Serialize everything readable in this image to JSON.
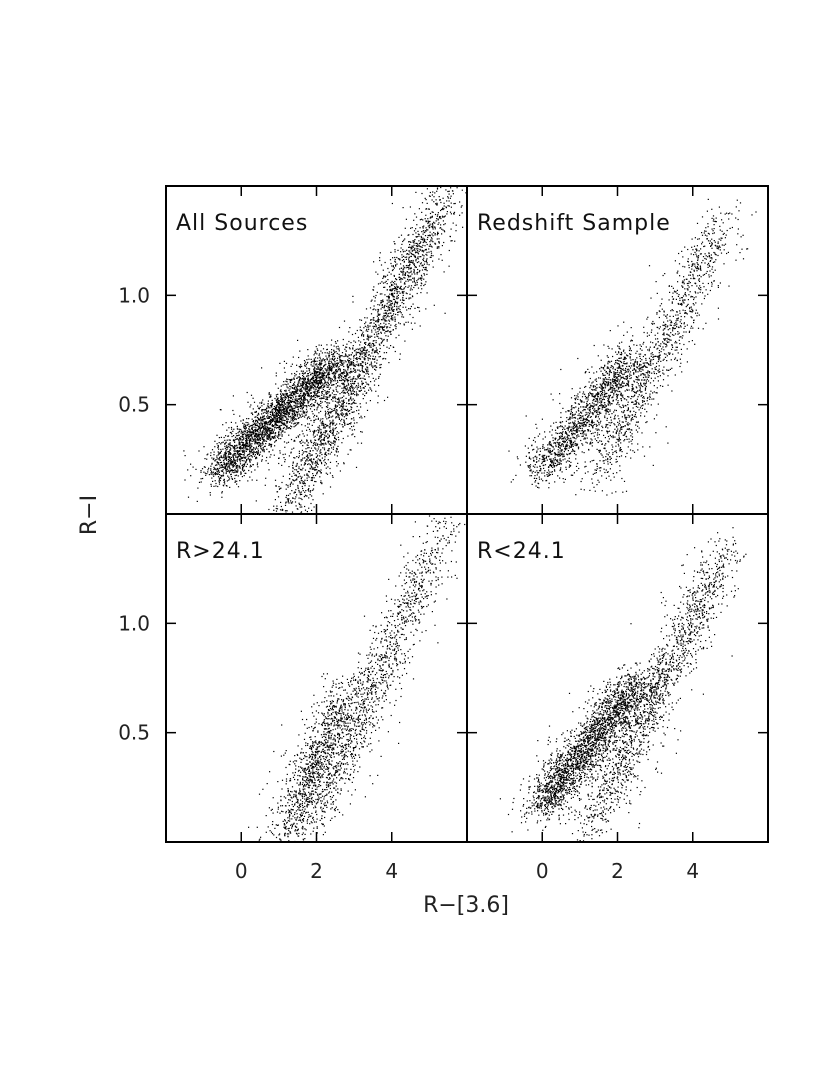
{
  "chart_data": {
    "type": "scatter",
    "xlabel": "R−[3.6]",
    "ylabel": "R−I",
    "xlim": [
      -2.0,
      6.0
    ],
    "ylim": [
      0.0,
      1.5
    ],
    "xticks": [
      {
        "value": 0,
        "label": "0"
      },
      {
        "value": 2,
        "label": "2"
      },
      {
        "value": 4,
        "label": "4"
      }
    ],
    "yticks": [
      {
        "value": 0.5,
        "label": "0.5"
      },
      {
        "value": 1.0,
        "label": "1.0"
      }
    ],
    "point_color": "#000000",
    "grid": false,
    "legend": "none",
    "panels": [
      {
        "title": "All Sources",
        "position": "top-left",
        "approx_points": 5200,
        "clusters": [
          {
            "x_range": [
              -0.7,
              2.6
            ],
            "y_range": [
              0.18,
              0.72
            ],
            "weight": 0.55,
            "note": "dense blue sequence"
          },
          {
            "x_range": [
              1.2,
              5.4
            ],
            "y_range": [
              0.02,
              1.45
            ],
            "weight": 0.45,
            "note": "red sequence band"
          }
        ]
      },
      {
        "title": "Redshift Sample",
        "position": "top-right",
        "approx_points": 2600,
        "clusters": [
          {
            "x_range": [
              -0.1,
              2.5
            ],
            "y_range": [
              0.18,
              0.75
            ],
            "weight": 0.55
          },
          {
            "x_range": [
              1.4,
              4.8
            ],
            "y_range": [
              0.15,
              1.35
            ],
            "weight": 0.45
          }
        ]
      },
      {
        "title": "R>24.1",
        "position": "bottom-left",
        "approx_points": 2300,
        "clusters": [
          {
            "x_range": [
              1.1,
              2.9
            ],
            "y_range": [
              0.02,
              0.75
            ],
            "weight": 0.45
          },
          {
            "x_range": [
              1.8,
              5.4
            ],
            "y_range": [
              0.05,
              1.45
            ],
            "weight": 0.55
          }
        ]
      },
      {
        "title": "R<24.1",
        "position": "bottom-right",
        "approx_points": 3800,
        "clusters": [
          {
            "x_range": [
              -0.1,
              2.6
            ],
            "y_range": [
              0.15,
              0.75
            ],
            "weight": 0.6
          },
          {
            "x_range": [
              1.2,
              4.9
            ],
            "y_range": [
              0.05,
              1.35
            ],
            "weight": 0.4
          }
        ]
      }
    ]
  }
}
